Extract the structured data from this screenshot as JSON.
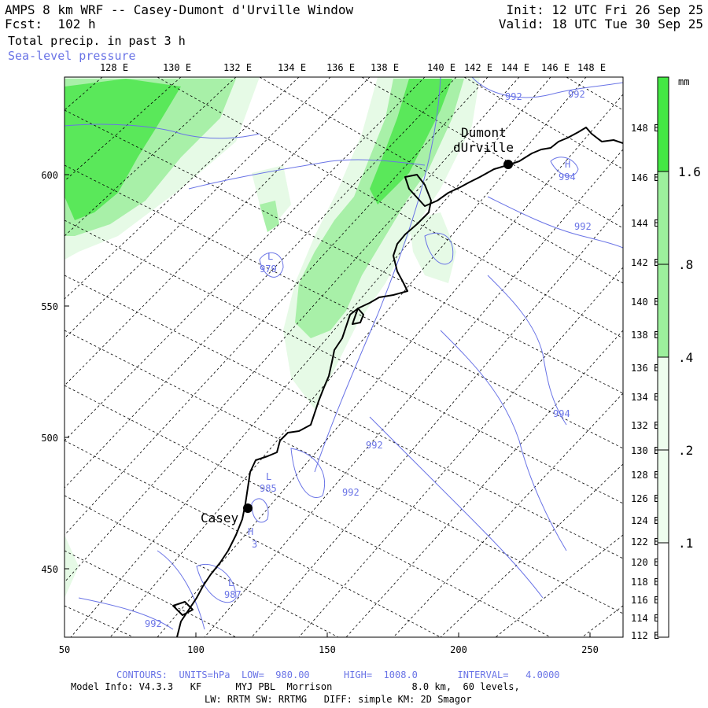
{
  "header": {
    "title": "AMPS 8 km WRF -- Casey-Dumont d'Urville Window",
    "forecast": "Fcst:  102 h",
    "field": "Total precip. in past 3 h",
    "overlay": "Sea-level pressure",
    "init": "Init: 12 UTC Fri 26 Sep 25",
    "valid": "Valid: 18 UTC Tue 30 Sep 25"
  },
  "map": {
    "top_lon_labels": [
      "128 E",
      "130 E",
      "132 E",
      "134 E",
      "136 E",
      "138 E",
      "140 E",
      "142 E",
      "144 E",
      "146 E",
      "148 E"
    ],
    "right_lon_labels": [
      "148 E",
      "146 E",
      "144 E",
      "142 E",
      "140 E",
      "138 E",
      "136 E",
      "134 E",
      "132 E",
      "130 E",
      "128 E",
      "126 E",
      "124 E",
      "122 E",
      "120 E",
      "118 E",
      "116 E",
      "114 E",
      "112 E"
    ],
    "left_y_labels": [
      "600",
      "550",
      "500",
      "450"
    ],
    "bottom_x_labels": [
      "50",
      "100",
      "150",
      "200",
      "250"
    ],
    "places": [
      {
        "name_line1": "Dumont",
        "name_line2": "dUrville"
      },
      {
        "name_line1": "Casey",
        "name_line2": ""
      }
    ],
    "contour_labels": [
      {
        "text": "992"
      },
      {
        "text": "992"
      },
      {
        "text": "994"
      },
      {
        "text": "992"
      },
      {
        "text": "979"
      },
      {
        "text": "994"
      },
      {
        "text": "992"
      },
      {
        "text": "992"
      },
      {
        "text": "985"
      },
      {
        "text": "987"
      },
      {
        "text": "992"
      },
      {
        "text": "3"
      }
    ],
    "pressure_markers": [
      {
        "text": "L"
      },
      {
        "text": "H"
      },
      {
        "text": "L"
      },
      {
        "text": "H"
      },
      {
        "text": "L"
      }
    ],
    "colors": {
      "coast": "#000000",
      "contour": "#6a74e6",
      "grid": "#000000",
      "precip_light": "#e6fae6",
      "precip_mid": "#a8f0a8",
      "precip_heavy": "#5ae85a"
    }
  },
  "colorbar": {
    "unit": "mm",
    "labels": [
      "1.6",
      ".8",
      ".4",
      ".2",
      ".1"
    ],
    "colors": [
      "#44e844",
      "#9df09d",
      "#eefdee",
      "#ffffff"
    ]
  },
  "footer": {
    "contours": "CONTOURS:  UNITS=hPa  LOW=  980.00      HIGH=  1008.0       INTERVAL=   4.0000",
    "model_info": "Model Info: V4.3.3   KF      MYJ PBL  Morrison              8.0 km,  60 levels,",
    "physics": "LW: RRTM SW: RRTMG   DIFF: simple KM: 2D Smagor"
  }
}
